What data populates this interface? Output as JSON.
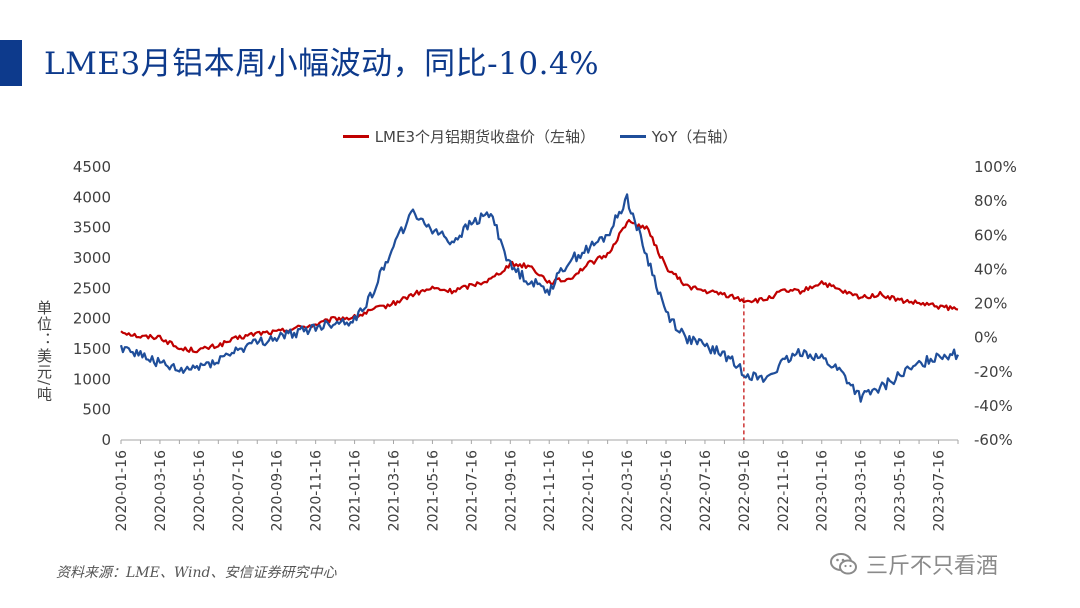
{
  "page": {
    "title": "LME3月铝本周小幅波动，同比-10.4%",
    "source": "资料来源：LME、Wind、安信证券研究中心",
    "watermark": "三斤不只看酒",
    "colors": {
      "brand": "#0d3a8c",
      "price": "#c00000",
      "yoy": "#1f4e9a"
    }
  },
  "chart_data": {
    "type": "line",
    "title": "",
    "legend": [
      {
        "name": "LME3个月铝期货收盘价（左轴）",
        "color": "#c00000"
      },
      {
        "name": "YoY（右轴）",
        "color": "#1f4e9a"
      }
    ],
    "ylabel_left": "单位：美元/吨",
    "ylim_left": [
      0,
      4500
    ],
    "yticks_left": [
      "0",
      "500",
      "1000",
      "1500",
      "2000",
      "2500",
      "3000",
      "3500",
      "4000",
      "4500"
    ],
    "ylim_right": [
      -60,
      100
    ],
    "yticks_right": [
      "-60%",
      "-40%",
      "-20%",
      "0%",
      "20%",
      "40%",
      "60%",
      "80%",
      "100%"
    ],
    "x_range_months": [
      0,
      43
    ],
    "xticks": [
      "2020-01-16",
      "2020-03-16",
      "2020-05-16",
      "2020-07-16",
      "2020-09-16",
      "2020-11-16",
      "2021-01-16",
      "2021-03-16",
      "2021-05-16",
      "2021-07-16",
      "2021-09-16",
      "2021-11-16",
      "2022-01-16",
      "2022-03-16",
      "2022-05-16",
      "2022-07-16",
      "2022-09-16",
      "2022-11-16",
      "2023-01-16",
      "2023-03-16",
      "2023-05-16",
      "2023-07-16"
    ],
    "marker_line_month": 32,
    "series": [
      {
        "name": "LME3个月铝期货收盘价",
        "axis": "left",
        "x_months": [
          0,
          1,
          2,
          3,
          4,
          5,
          6,
          7,
          8,
          9,
          10,
          11,
          12,
          13,
          14,
          15,
          16,
          17,
          18,
          19,
          20,
          21,
          22,
          23,
          24,
          25,
          26,
          27,
          28,
          29,
          30,
          31,
          32,
          33,
          34,
          35,
          36,
          37,
          38,
          39,
          40,
          41,
          42,
          43
        ],
        "values": [
          1800,
          1700,
          1700,
          1500,
          1480,
          1560,
          1680,
          1760,
          1780,
          1850,
          1900,
          2000,
          2020,
          2150,
          2250,
          2400,
          2500,
          2450,
          2550,
          2650,
          2900,
          2870,
          2600,
          2650,
          2900,
          3050,
          3600,
          3500,
          2850,
          2550,
          2450,
          2400,
          2300,
          2300,
          2450,
          2450,
          2600,
          2450,
          2350,
          2400,
          2300,
          2250,
          2200,
          2150
        ]
      },
      {
        "name": "YoY",
        "axis": "right",
        "x_months": [
          0,
          1,
          2,
          3,
          4,
          5,
          6,
          7,
          8,
          9,
          10,
          11,
          12,
          13,
          14,
          15,
          16,
          17,
          18,
          19,
          20,
          21,
          22,
          23,
          24,
          25,
          26,
          27,
          28,
          29,
          30,
          31,
          32,
          33,
          34,
          35,
          36,
          37,
          38,
          39,
          40,
          41,
          42,
          43
        ],
        "values": [
          -5,
          -10,
          -15,
          -20,
          -17,
          -13,
          -7,
          -3,
          0,
          3,
          6,
          9,
          10,
          28,
          55,
          73,
          64,
          56,
          67,
          73,
          42,
          33,
          28,
          45,
          52,
          60,
          82,
          48,
          15,
          0,
          -5,
          -10,
          -20,
          -25,
          -15,
          -8,
          -12,
          -20,
          -35,
          -30,
          -22,
          -16,
          -10,
          -10
        ]
      }
    ]
  }
}
